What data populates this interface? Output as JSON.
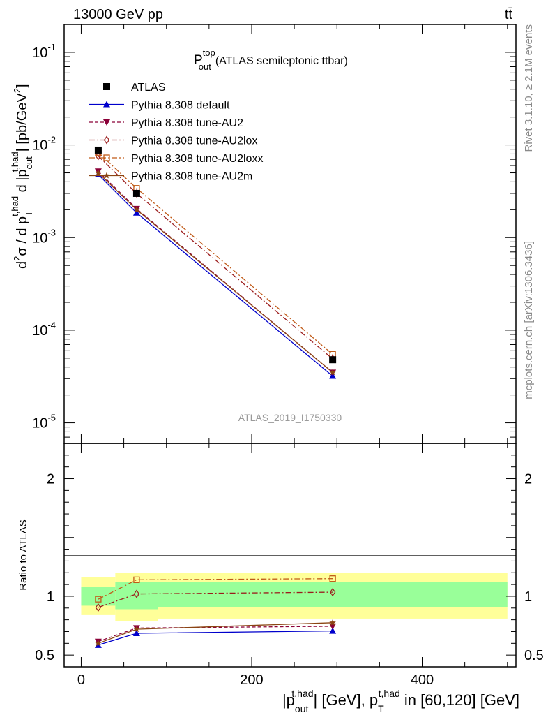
{
  "header": {
    "left": "13000 GeV pp",
    "right": "tt̄"
  },
  "side_labels": {
    "rivet": "Rivet 3.1.10, ≥ 2.1M events",
    "mcplots": "mcplots.cern.ch [arXiv:1306.3436]"
  },
  "plot_title": {
    "main": "P",
    "sup": "top",
    "sub": "out",
    "rest": "(ATLAS semileptonic ttbar)"
  },
  "watermark": "ATLAS_2019_I1750330",
  "y_label_main": {
    "p1": "d",
    "p1sup": "2",
    "p2": "σ / d p",
    "p2sub": "T",
    "p2sup": "t,had",
    "p3": " d |p",
    "p3sub": "out",
    "p3sup": "t,had",
    "p4": "| [pb/GeV",
    "p4sup": "2",
    "p5": "]"
  },
  "y_label_ratio": "Ratio to ATLAS",
  "x_label": {
    "a": "|p",
    "a_sub": "out",
    "a_sup": "t,had",
    "b": "| [GeV], p",
    "b_sub": "T",
    "b_sup": "t,had",
    "c": " in [60,120] [GeV]"
  },
  "legend": [
    {
      "label": "ATLAS",
      "color": "#000000",
      "marker": "square-filled",
      "dash": "none"
    },
    {
      "label": "Pythia 8.308 default",
      "color": "#0000cc",
      "marker": "triangle-up",
      "dash": "solid"
    },
    {
      "label": "Pythia 8.308 tune-AU2",
      "color": "#8b0038",
      "marker": "triangle-down",
      "dash": "dashed"
    },
    {
      "label": "Pythia 8.308 tune-AU2lox",
      "color": "#9b1c1c",
      "marker": "diamond-open",
      "dash": "dashdot"
    },
    {
      "label": "Pythia 8.308 tune-AU2loxx",
      "color": "#c05a17",
      "marker": "square-open",
      "dash": "dashdot"
    },
    {
      "label": "Pythia 8.308 tune-AU2m",
      "color": "#8b4513",
      "marker": "star",
      "dash": "solid"
    }
  ],
  "chart_data": {
    "type": "line",
    "x_axis": {
      "range": [
        -20,
        510
      ],
      "ticks": [
        0,
        200,
        400
      ],
      "tick_labels": [
        "0",
        "200",
        "400"
      ]
    },
    "main_y_axis": {
      "scale": "log",
      "range": [
        6e-06,
        0.2
      ],
      "ticks": [
        1e-05,
        0.0001,
        0.001,
        0.01,
        0.1
      ],
      "tick_labels": [
        "10^-5",
        "10^-4",
        "10^-3",
        "10^-2",
        "10^-1"
      ]
    },
    "ratio_y_axis": {
      "range": [
        0.4,
        2.3
      ],
      "ticks": [
        0.5,
        1,
        2
      ],
      "tick_labels": [
        "0.5",
        "1",
        "2"
      ]
    },
    "x": [
      20,
      65,
      295
    ],
    "data": {
      "name": "ATLAS",
      "y": [
        0.0088,
        0.003,
        4.8e-05
      ]
    },
    "series": [
      {
        "name": "Pythia 8.308 default",
        "y": [
          0.0048,
          0.00185,
          3.2e-05
        ],
        "ratio": [
          0.585,
          0.685,
          0.705
        ]
      },
      {
        "name": "Pythia 8.308 tune-AU2",
        "y": [
          0.0052,
          0.00205,
          3.5e-05
        ],
        "ratio": [
          0.615,
          0.73,
          0.745
        ]
      },
      {
        "name": "Pythia 8.308 tune-AU2lox",
        "y": [
          0.0076,
          0.003,
          4.9e-05
        ],
        "ratio": [
          0.905,
          1.02,
          1.035
        ]
      },
      {
        "name": "Pythia 8.308 tune-AU2loxx",
        "y": [
          0.0083,
          0.0034,
          5.5e-05
        ],
        "ratio": [
          0.975,
          1.14,
          1.15
        ]
      },
      {
        "name": "Pythia 8.308 tune-AU2m",
        "y": [
          0.005,
          0.002,
          3.5e-05
        ],
        "ratio": [
          0.6,
          0.72,
          0.775
        ]
      }
    ],
    "bands": {
      "bins": [
        [
          0,
          40
        ],
        [
          40,
          90
        ],
        [
          90,
          500
        ]
      ],
      "green": [
        [
          0.92,
          1.08
        ],
        [
          0.89,
          1.12
        ],
        [
          0.91,
          1.12
        ]
      ],
      "yellow": [
        [
          0.84,
          1.16
        ],
        [
          0.79,
          1.2
        ],
        [
          0.81,
          1.2
        ]
      ]
    }
  }
}
